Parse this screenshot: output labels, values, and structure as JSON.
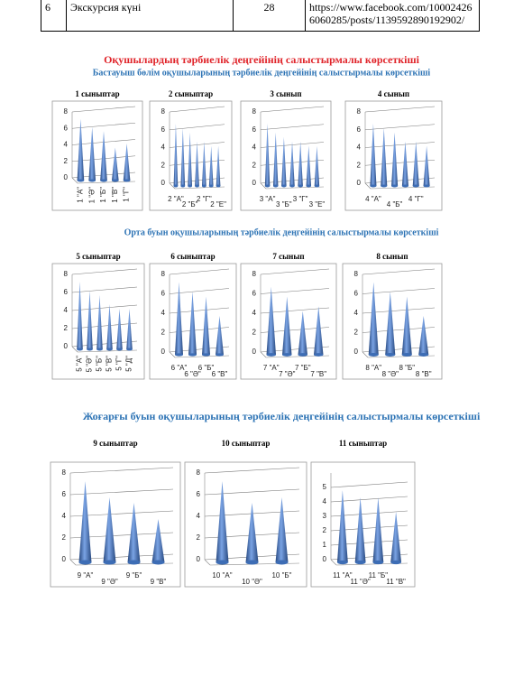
{
  "table": {
    "rows": [
      [
        "6",
        "Экскурсия күні",
        "28",
        "https://www.facebook.com/100024266060285/posts/1139592890192902/"
      ]
    ]
  },
  "title": "Оқушылардың тәрбиелік деңгейінің салыстырмалы көрсеткіші",
  "sections": [
    "Бастауыш бөлім оқушыларының тәрбиелік деңгейінің салыстырмалы көрсеткіші",
    "Орта буын оқушыларының тәрбиелік деңгейінің салыстырмалы көрсеткіші",
    "Жоғарғы буын оқушыларының тәрбиелік деңгейінің салыстырмалы көрсеткіші"
  ],
  "chart_data": [
    {
      "type": "bar",
      "title": "1 сыныптар",
      "categories": [
        "1 \"А\"",
        "1 \"Ә\"",
        "1 \"Б\"",
        "1 \"В\"",
        "1 \"Г\""
      ],
      "values": [
        7.5,
        6.5,
        6,
        4,
        4.5
      ],
      "ylim": [
        0,
        8
      ],
      "yticks": [
        0,
        2,
        4,
        6,
        8
      ],
      "color": "#3d6db5"
    },
    {
      "type": "bar",
      "title": "2 сыныптар",
      "categories": [
        "2 \"А\"",
        null,
        "2 \"Б\"",
        null,
        "2 \"Г\"",
        null,
        "2 \"Е\""
      ],
      "values": [
        7,
        6.5,
        6,
        5,
        5,
        4.5,
        4.5
      ],
      "ylim": [
        0,
        8
      ],
      "yticks": [
        0,
        2,
        4,
        6,
        8
      ],
      "color": "#3d6db5"
    },
    {
      "type": "bar",
      "title": "3 сынып",
      "categories": [
        "3 \"А\"",
        null,
        "3 \"Б\"",
        null,
        "3 \"Г\"",
        null,
        "3 \"Е\""
      ],
      "values": [
        7,
        6,
        5.5,
        5,
        5,
        4.5,
        4.5
      ],
      "ylim": [
        0,
        8
      ],
      "yticks": [
        0,
        2,
        4,
        6,
        8
      ],
      "color": "#3d6db5"
    },
    {
      "type": "bar",
      "title": "4 сынып",
      "categories": [
        "4 \"А\"",
        null,
        "4 \"Б\"",
        null,
        "4 \"Г\"",
        null
      ],
      "values": [
        7,
        6.5,
        6,
        5,
        5,
        4.5
      ],
      "ylim": [
        0,
        8
      ],
      "yticks": [
        0,
        2,
        4,
        6,
        8
      ],
      "color": "#3d6db5"
    },
    {
      "type": "bar",
      "title": "5 сыныптар",
      "categories": [
        "5 \"А\"",
        "5 \"Ә\"",
        "5 \"Б\"",
        "5 \"В\"",
        "5 \"Г\"",
        "5 \"Д\""
      ],
      "values": [
        7.5,
        6.5,
        6,
        5,
        4.5,
        4.5
      ],
      "ylim": [
        0,
        8
      ],
      "yticks": [
        0,
        2,
        4,
        6,
        8
      ],
      "color": "#3d6db5"
    },
    {
      "type": "bar",
      "title": "6 сыныптар",
      "categories": [
        "6 \"А\"",
        "6 \"Ә\"",
        "6 \"Б\"",
        "6 \"В\""
      ],
      "values": [
        7.5,
        6.5,
        6,
        4
      ],
      "ylim": [
        0,
        8
      ],
      "yticks": [
        0,
        2,
        4,
        6,
        8
      ],
      "color": "#3d6db5"
    },
    {
      "type": "bar",
      "title": "7 сынып",
      "categories": [
        "7 \"А\"",
        "7 \"Ә\"",
        "7 \"Б\"",
        "7 \"В\""
      ],
      "values": [
        7,
        6,
        4.5,
        5
      ],
      "ylim": [
        0,
        8
      ],
      "yticks": [
        0,
        2,
        4,
        6,
        8
      ],
      "color": "#3d6db5"
    },
    {
      "type": "bar",
      "title": "8 сынып",
      "categories": [
        "8 \"А\"",
        "8 \"Ә\"",
        "8 \"Б\"",
        "8 \"В\""
      ],
      "values": [
        7.5,
        6.5,
        6,
        4
      ],
      "ylim": [
        0,
        8
      ],
      "yticks": [
        0,
        2,
        4,
        6,
        8
      ],
      "color": "#3d6db5"
    },
    {
      "type": "bar",
      "title": "9 сыныптар",
      "categories": [
        "9 \"А\"",
        "9 \"Ә\"",
        "9 \"Б\"",
        "9 \"В\""
      ],
      "values": [
        7.5,
        6,
        5.5,
        4
      ],
      "ylim": [
        0,
        8
      ],
      "yticks": [
        0,
        2,
        4,
        6,
        8
      ],
      "color": "#3d6db5"
    },
    {
      "type": "bar",
      "title": "10 сыныптар",
      "categories": [
        "10 \"А\"",
        "10 \"Ә\"",
        "10 \"Б\""
      ],
      "values": [
        7.5,
        5.5,
        6
      ],
      "ylim": [
        0,
        8
      ],
      "yticks": [
        0,
        2,
        4,
        6,
        8
      ],
      "color": "#3d6db5"
    },
    {
      "type": "bar",
      "title": "11 сыныптар",
      "categories": [
        "11 \"А\"",
        "11 \"Ә\"",
        "11 \"Б\"",
        "11 \"В\""
      ],
      "values": [
        5,
        4.5,
        4.5,
        3.5
      ],
      "ylim": [
        0,
        6
      ],
      "yticks": [
        0,
        1,
        2,
        3,
        4,
        5
      ],
      "color": "#3d6db5"
    }
  ]
}
